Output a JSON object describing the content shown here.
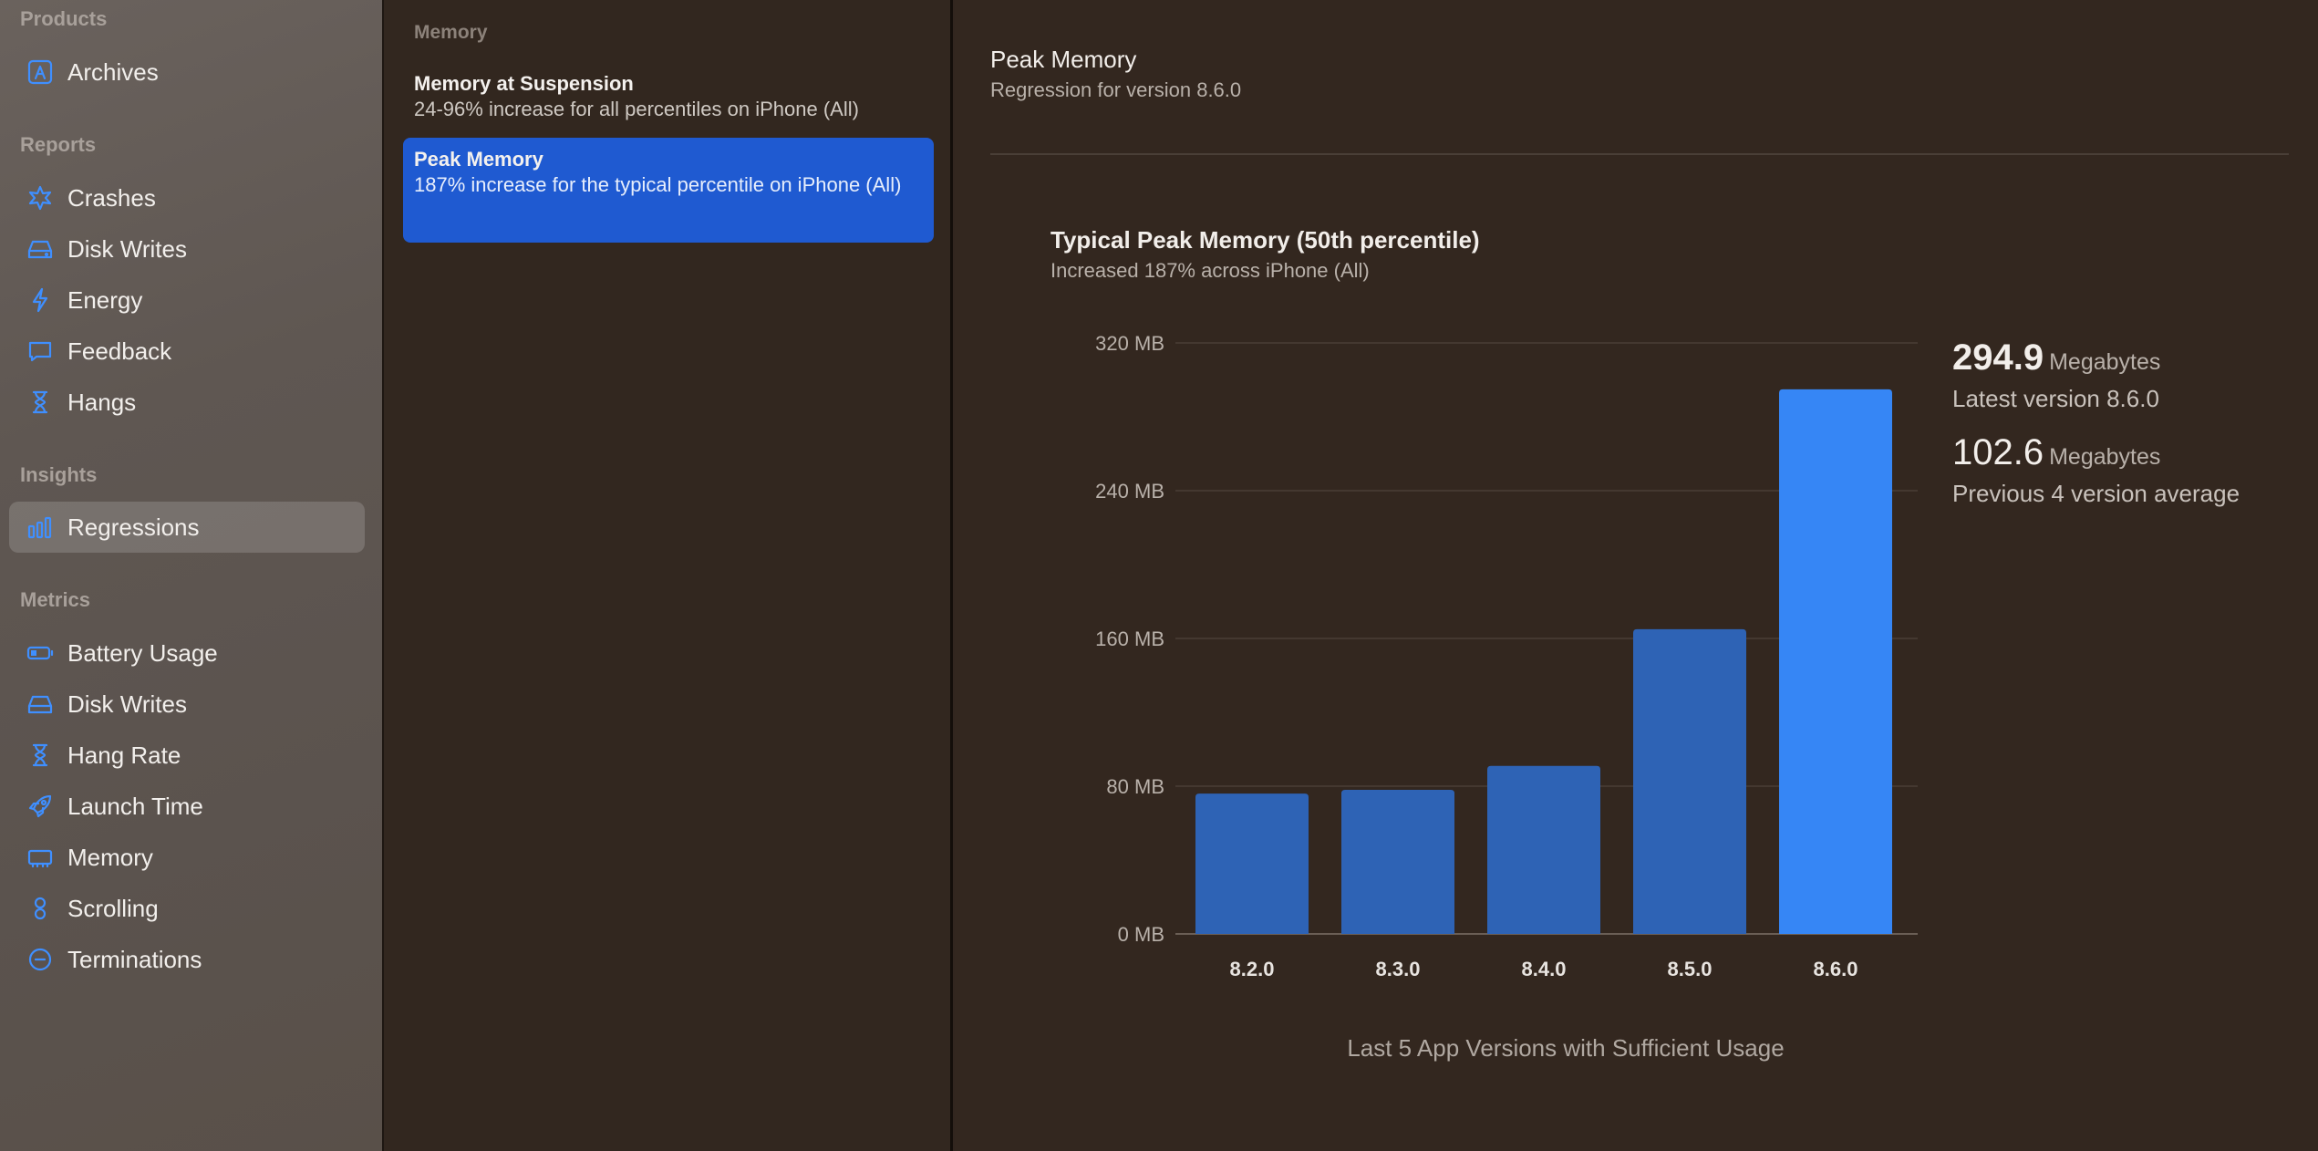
{
  "sidebar": {
    "sections": [
      {
        "title": "Products",
        "items": [
          {
            "label": "Archives",
            "icon": "archive-icon"
          }
        ]
      },
      {
        "title": "Reports",
        "items": [
          {
            "label": "Crashes",
            "icon": "crash-icon"
          },
          {
            "label": "Disk Writes",
            "icon": "disk-icon"
          },
          {
            "label": "Energy",
            "icon": "bolt-icon"
          },
          {
            "label": "Feedback",
            "icon": "feedback-icon"
          },
          {
            "label": "Hangs",
            "icon": "hourglass-icon"
          }
        ]
      },
      {
        "title": "Insights",
        "items": [
          {
            "label": "Regressions",
            "icon": "bars-icon"
          }
        ]
      },
      {
        "title": "Metrics",
        "items": [
          {
            "label": "Battery Usage",
            "icon": "battery-icon"
          },
          {
            "label": "Disk Writes",
            "icon": "disk-icon"
          },
          {
            "label": "Hang Rate",
            "icon": "hourglass-icon"
          },
          {
            "label": "Launch Time",
            "icon": "rocket-icon"
          },
          {
            "label": "Memory",
            "icon": "memory-icon"
          },
          {
            "label": "Scrolling",
            "icon": "scroll-icon"
          },
          {
            "label": "Terminations",
            "icon": "minus-circle-icon"
          }
        ]
      }
    ],
    "selected": "Regressions"
  },
  "list": {
    "header": "Memory",
    "rows": [
      {
        "title": "Memory at Suspension",
        "subtitle": "24-96% increase for all percentiles on iPhone (All)"
      },
      {
        "title": "Peak Memory",
        "subtitle": "187% increase for the typical percentile on iPhone (All)"
      }
    ],
    "selected_index": 1
  },
  "detail": {
    "title": "Peak Memory",
    "subtitle": "Regression for version 8.6.0",
    "chart_title": "Typical Peak Memory (50th percentile)",
    "chart_subtitle": "Increased 187% across iPhone (All)",
    "x_caption": "Last 5 App Versions with Sufficient Usage",
    "stats": [
      {
        "value": "294.9",
        "unit": "Megabytes",
        "label": "Latest version 8.6.0"
      },
      {
        "value": "102.6",
        "unit": "Megabytes",
        "label": "Previous 4 version average"
      }
    ]
  },
  "colors": {
    "accent": "#3f8fff",
    "bar": "#2e63b5",
    "bar_highlight": "#3686f5",
    "selection": "#1f5ad1"
  },
  "chart_data": {
    "type": "bar",
    "categories": [
      "8.2.0",
      "8.3.0",
      "8.4.0",
      "8.5.0",
      "8.6.0"
    ],
    "values": [
      76,
      78,
      91,
      165,
      294.9
    ],
    "highlight_index": 4,
    "ylim": [
      0,
      320
    ],
    "y_ticks": [
      "0 MB",
      "80 MB",
      "160 MB",
      "240 MB",
      "320 MB"
    ],
    "y_tick_values": [
      0,
      80,
      160,
      240,
      320
    ],
    "grid": true
  }
}
